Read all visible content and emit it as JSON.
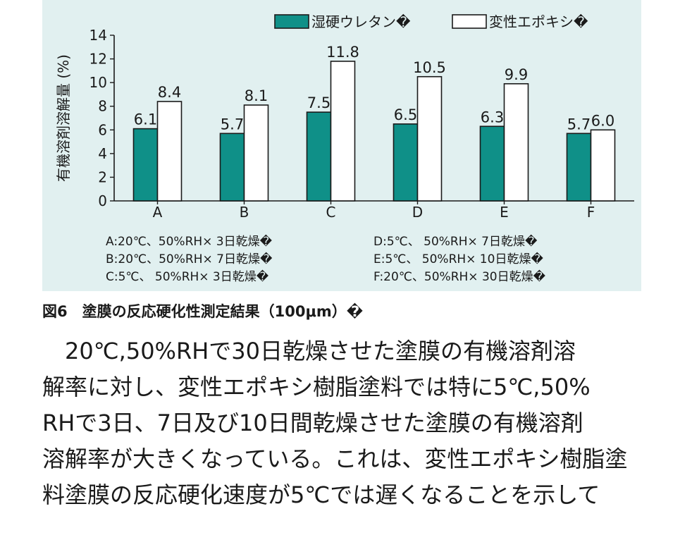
{
  "chart_data": {
    "type": "bar",
    "categories": [
      "A",
      "B",
      "C",
      "D",
      "E",
      "F"
    ],
    "series": [
      {
        "name": "湿硬ウレタン�",
        "values": [
          6.1,
          5.7,
          7.5,
          6.5,
          6.3,
          5.7
        ],
        "color": "#0f9088"
      },
      {
        "name": "変性エポキシ�",
        "values": [
          8.4,
          8.1,
          11.8,
          10.5,
          9.9,
          6.0
        ],
        "color": "#ffffff"
      }
    ],
    "value_labels": [
      [
        "6.1",
        "5.7",
        "7.5",
        "6.5",
        "6.3",
        "5.7"
      ],
      [
        "8.4",
        "8.1",
        "11.8",
        "10.5",
        "9.9",
        "6.0"
      ]
    ],
    "ylabel": "有機溶剤溶解量 (%)",
    "ylim": [
      0,
      14
    ],
    "yticks": [
      "0",
      "2",
      "4",
      "6",
      "8",
      "10",
      "12",
      "14"
    ],
    "legend_position": "top-right",
    "grid": false,
    "background_color": "#e1f0f0"
  },
  "conditions": [
    "A:20℃、50%RH× 3日乾燥�",
    "B:20℃、50%RH× 7日乾燥�",
    "C:5℃、 50%RH× 3日乾燥�",
    "D:5℃、 50%RH× 7日乾燥�",
    "E:5℃、 50%RH× 10日乾燥�",
    "F:20℃、50%RH× 30日乾燥�"
  ],
  "caption": "図6　塗膜の反応硬化性測定結果（100μm）�",
  "body_lines": [
    "　20℃,50%RHで30日乾燥させた塗膜の有機溶剤溶",
    "解率に対し、変性エポキシ樹脂塗料では特に5℃,50%",
    "RHで3日、7日及び10日間乾燥させた塗膜の有機溶剤",
    "溶解率が大きくなっている。これは、変性エポキシ樹脂塗",
    "料塗膜の反応硬化速度が5℃では遅くなることを示して"
  ]
}
